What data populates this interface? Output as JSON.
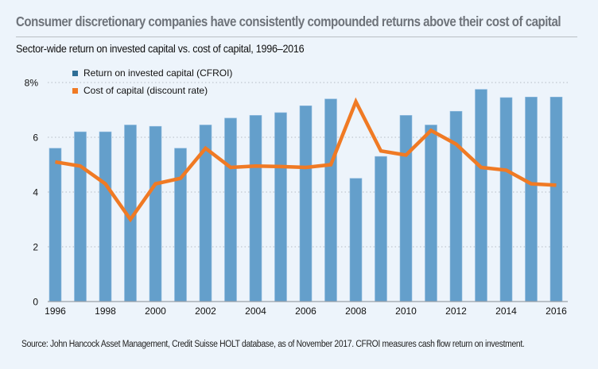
{
  "chart_data": {
    "type": "bar",
    "title": "Consumer discretionary companies have consistently compounded returns above their cost of capital",
    "subtitle": "Sector-wide return on invested capital vs. cost of capital, 1996–2016",
    "xlabel": "",
    "ylabel": "",
    "ylim": [
      0,
      8
    ],
    "yticks": [
      0,
      2,
      4,
      6,
      8
    ],
    "ytick_labels": [
      "0",
      "2",
      "4",
      "6",
      "8%"
    ],
    "grid": true,
    "legend_position": "top-left",
    "categories": [
      "1996",
      "1997",
      "1998",
      "1999",
      "2000",
      "2001",
      "2002",
      "2003",
      "2004",
      "2005",
      "2006",
      "2007",
      "2008",
      "2009",
      "2010",
      "2011",
      "2012",
      "2013",
      "2014",
      "2015",
      "2016"
    ],
    "xtick_labels": [
      "1996",
      "1998",
      "2000",
      "2002",
      "2004",
      "2006",
      "2008",
      "2010",
      "2012",
      "2014",
      "2016"
    ],
    "series": [
      {
        "name": "Return on invested capital (CFROI)",
        "type": "bar",
        "color": "#649fcb",
        "legend_color": "#2e6e96",
        "values": [
          5.6,
          6.2,
          6.2,
          6.45,
          6.4,
          5.6,
          6.45,
          6.7,
          6.8,
          6.9,
          7.15,
          7.4,
          4.5,
          5.3,
          6.8,
          6.45,
          6.95,
          7.75,
          7.45,
          7.47,
          7.47
        ]
      },
      {
        "name": "Cost of capital (discount rate)",
        "type": "line",
        "color": "#f07a24",
        "legend_color": "#f07a24",
        "values": [
          5.1,
          4.95,
          4.3,
          3.0,
          4.3,
          4.5,
          5.6,
          4.9,
          4.95,
          4.93,
          4.9,
          5.0,
          7.3,
          5.5,
          5.35,
          6.25,
          5.75,
          4.9,
          4.8,
          4.3,
          4.25
        ]
      }
    ],
    "source": "Source: John Hancock Asset Management, Credit Suisse HOLT database, as of November 2017. CFROI measures cash flow return on investment."
  }
}
